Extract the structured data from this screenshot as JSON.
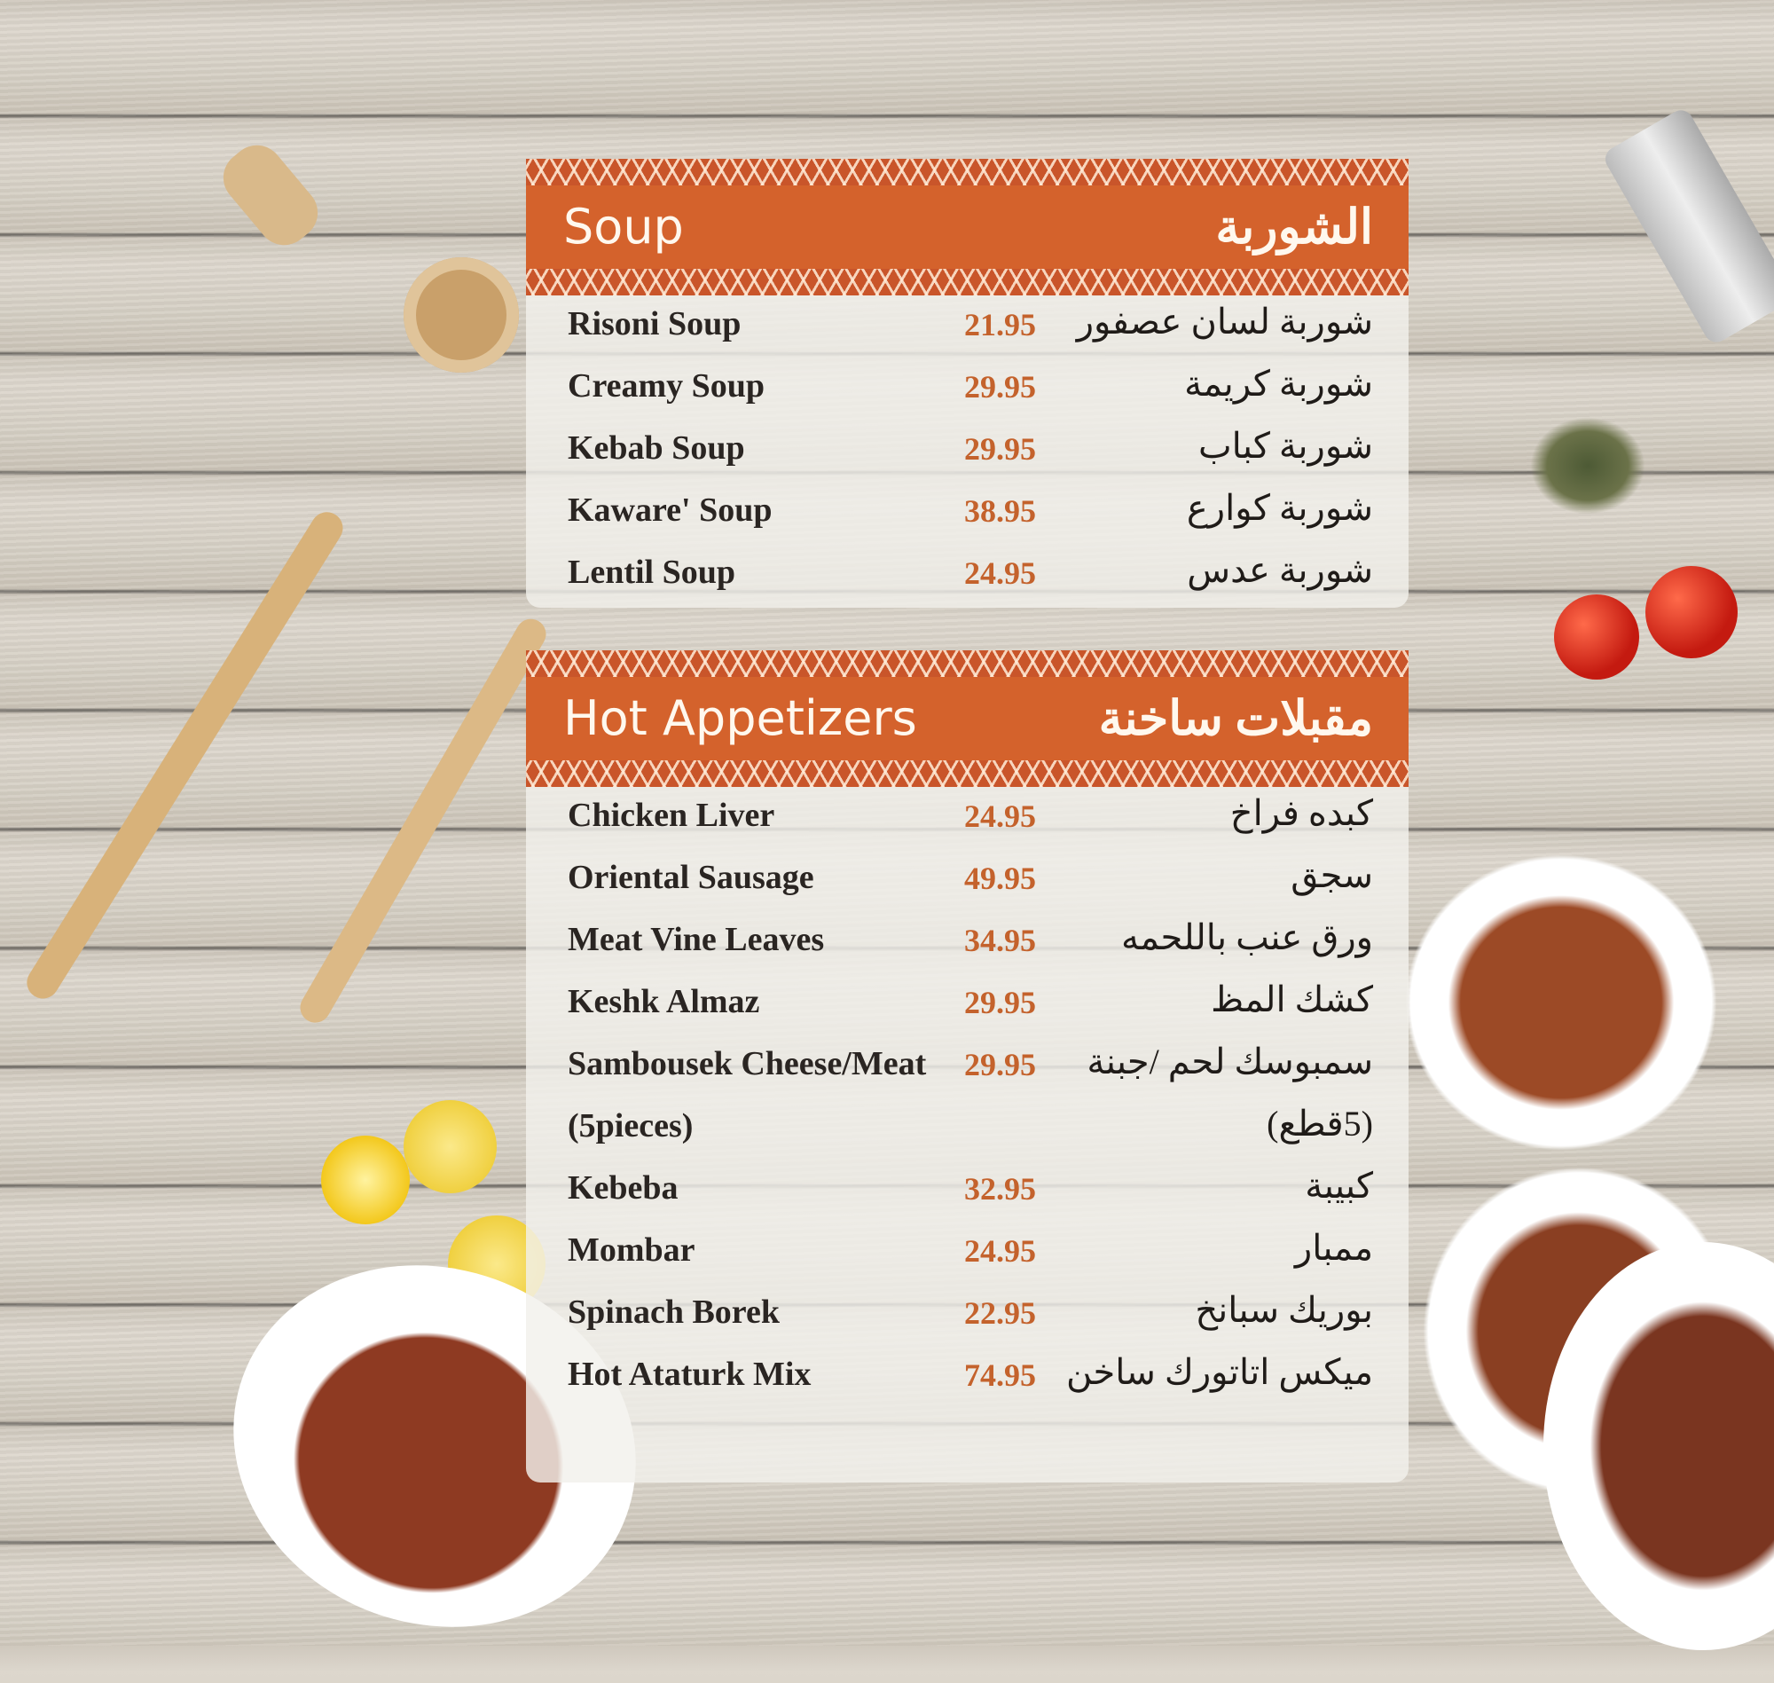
{
  "colors": {
    "header": "#d4622c",
    "price": "#c4622c",
    "text": "#2a2522"
  },
  "sections": [
    {
      "title_en": "Soup",
      "title_ar": "الشوربة",
      "items": [
        {
          "name": "Risoni Soup",
          "price": "21.95",
          "name_ar": "شوربة لسان عصفور"
        },
        {
          "name": "Creamy Soup",
          "price": "29.95",
          "name_ar": "شوربة كريمة"
        },
        {
          "name": "Kebab Soup",
          "price": "29.95",
          "name_ar": "شوربة كباب"
        },
        {
          "name": "Kaware' Soup",
          "price": "38.95",
          "name_ar": "شوربة كوارع"
        },
        {
          "name": "Lentil Soup",
          "price": "24.95",
          "name_ar": "شوربة عدس"
        }
      ]
    },
    {
      "title_en": "Hot Appetizers",
      "title_ar": "مقبلات ساخنة",
      "items": [
        {
          "name": "Chicken Liver",
          "price": "24.95",
          "name_ar": "كبده فراخ"
        },
        {
          "name": "Oriental Sausage",
          "price": "49.95",
          "name_ar": "سجق"
        },
        {
          "name": "Meat Vine Leaves",
          "price": "34.95",
          "name_ar": "ورق عنب باللحمه"
        },
        {
          "name": "Keshk Almaz",
          "price": "29.95",
          "name_ar": "كشك المظ"
        },
        {
          "name": "Sambousek Cheese/Meat",
          "price": "29.95",
          "name_ar": "سمبوسك لحم /جبنة",
          "name_line2": "(5pieces)",
          "name_ar_line2": "(5قطع)"
        },
        {
          "name": "Kebeba",
          "price": "32.95",
          "name_ar": "كبيبة"
        },
        {
          "name": "Mombar",
          "price": "24.95",
          "name_ar": "ممبار"
        },
        {
          "name": "Spinach Borek",
          "price": "22.95",
          "name_ar": "بوريك سبانخ"
        },
        {
          "name": "Hot Ataturk Mix",
          "price": "74.95",
          "name_ar": "ميكس اتاتورك ساخن"
        }
      ]
    }
  ]
}
